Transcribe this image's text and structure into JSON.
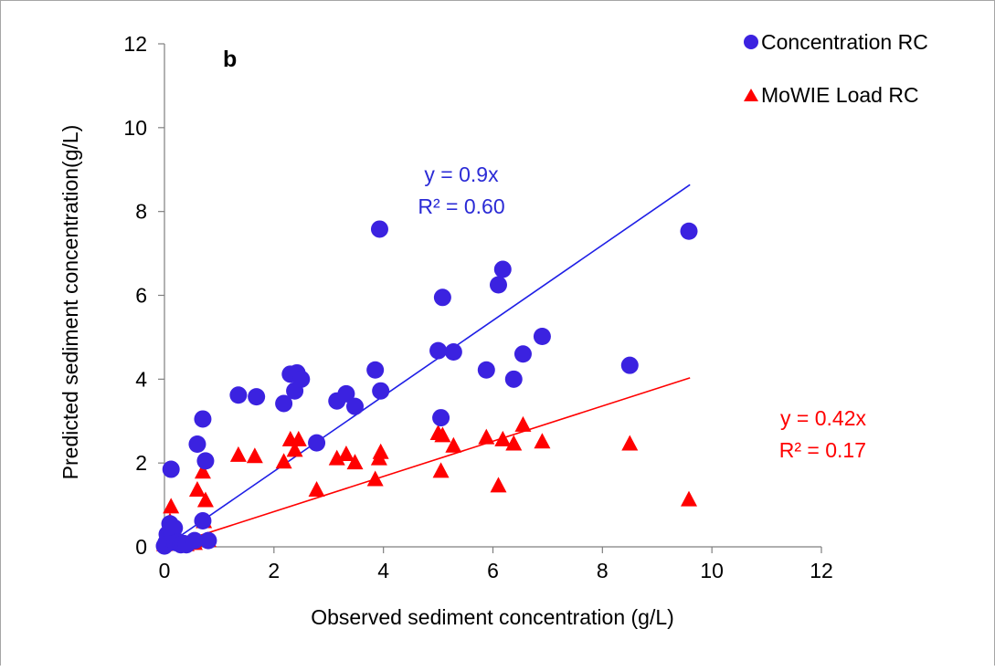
{
  "chart_data": {
    "type": "scatter",
    "panel_label": "b",
    "xlabel": "Observed sediment concentration (g/L)",
    "ylabel": "Predicted sediment concentration(g/L)",
    "xlim": [
      0,
      12
    ],
    "ylim": [
      0,
      12
    ],
    "xticks": [
      "0",
      "2",
      "4",
      "6",
      "8",
      "10",
      "12"
    ],
    "yticks": [
      "0",
      "2",
      "4",
      "6",
      "8",
      "10",
      "12"
    ],
    "grid": false,
    "legend_position": "top-right",
    "series": [
      {
        "name": "Concentration RC",
        "marker": "circle",
        "color": "#3b22e0",
        "points": [
          [
            0.0,
            0.02
          ],
          [
            0.03,
            0.1
          ],
          [
            0.05,
            0.3
          ],
          [
            0.08,
            0.2
          ],
          [
            0.1,
            0.55
          ],
          [
            0.12,
            0.4
          ],
          [
            0.15,
            0.3
          ],
          [
            0.18,
            0.45
          ],
          [
            0.2,
            0.1
          ],
          [
            0.25,
            0.12
          ],
          [
            0.3,
            0.05
          ],
          [
            0.35,
            0.08
          ],
          [
            0.4,
            0.05
          ],
          [
            0.55,
            0.15
          ],
          [
            0.7,
            0.62
          ],
          [
            0.8,
            0.15
          ],
          [
            0.12,
            1.85
          ],
          [
            0.6,
            2.45
          ],
          [
            0.7,
            3.05
          ],
          [
            0.75,
            2.05
          ],
          [
            1.35,
            3.62
          ],
          [
            1.68,
            3.58
          ],
          [
            2.18,
            3.42
          ],
          [
            2.3,
            4.12
          ],
          [
            2.38,
            3.72
          ],
          [
            2.42,
            4.15
          ],
          [
            2.5,
            4.0
          ],
          [
            2.78,
            2.48
          ],
          [
            3.15,
            3.48
          ],
          [
            3.32,
            3.65
          ],
          [
            3.48,
            3.35
          ],
          [
            3.85,
            4.22
          ],
          [
            3.93,
            7.58
          ],
          [
            3.95,
            3.72
          ],
          [
            5.0,
            4.68
          ],
          [
            5.05,
            3.08
          ],
          [
            5.08,
            5.95
          ],
          [
            5.28,
            4.65
          ],
          [
            5.88,
            4.22
          ],
          [
            6.1,
            6.25
          ],
          [
            6.18,
            6.62
          ],
          [
            6.38,
            4.0
          ],
          [
            6.55,
            4.6
          ],
          [
            6.9,
            5.02
          ],
          [
            8.5,
            4.33
          ],
          [
            9.58,
            7.53
          ]
        ],
        "trendline": {
          "equation": "y = 0.9x",
          "r2": "R² = 0.60",
          "slope": 0.9,
          "x_range": [
            0,
            9.6
          ]
        }
      },
      {
        "name": "MoWIE Load RC",
        "marker": "triangle",
        "color": "#ff0000",
        "points": [
          [
            0.0,
            0.05
          ],
          [
            0.05,
            0.2
          ],
          [
            0.08,
            0.35
          ],
          [
            0.1,
            0.6
          ],
          [
            0.12,
            0.95
          ],
          [
            0.15,
            0.4
          ],
          [
            0.2,
            0.3
          ],
          [
            0.25,
            0.15
          ],
          [
            0.3,
            0.1
          ],
          [
            0.4,
            0.05
          ],
          [
            0.5,
            0.1
          ],
          [
            0.55,
            0.08
          ],
          [
            0.6,
            1.35
          ],
          [
            0.7,
            1.78
          ],
          [
            0.72,
            0.6
          ],
          [
            0.75,
            1.1
          ],
          [
            0.8,
            0.15
          ],
          [
            1.35,
            2.18
          ],
          [
            1.65,
            2.15
          ],
          [
            2.18,
            2.02
          ],
          [
            2.3,
            2.55
          ],
          [
            2.38,
            2.3
          ],
          [
            2.45,
            2.55
          ],
          [
            2.78,
            1.35
          ],
          [
            3.15,
            2.1
          ],
          [
            3.32,
            2.2
          ],
          [
            3.48,
            2.0
          ],
          [
            3.85,
            1.6
          ],
          [
            3.92,
            2.1
          ],
          [
            3.95,
            2.25
          ],
          [
            5.0,
            2.7
          ],
          [
            5.05,
            1.8
          ],
          [
            5.08,
            2.65
          ],
          [
            5.28,
            2.4
          ],
          [
            5.88,
            2.6
          ],
          [
            6.1,
            1.45
          ],
          [
            6.18,
            2.55
          ],
          [
            6.38,
            2.45
          ],
          [
            6.55,
            2.9
          ],
          [
            6.9,
            2.5
          ],
          [
            8.5,
            2.45
          ],
          [
            9.58,
            1.12
          ]
        ],
        "trendline": {
          "equation": "y = 0.42x",
          "r2": "R² = 0.17",
          "slope": 0.42,
          "x_range": [
            0,
            9.6
          ]
        }
      }
    ]
  }
}
